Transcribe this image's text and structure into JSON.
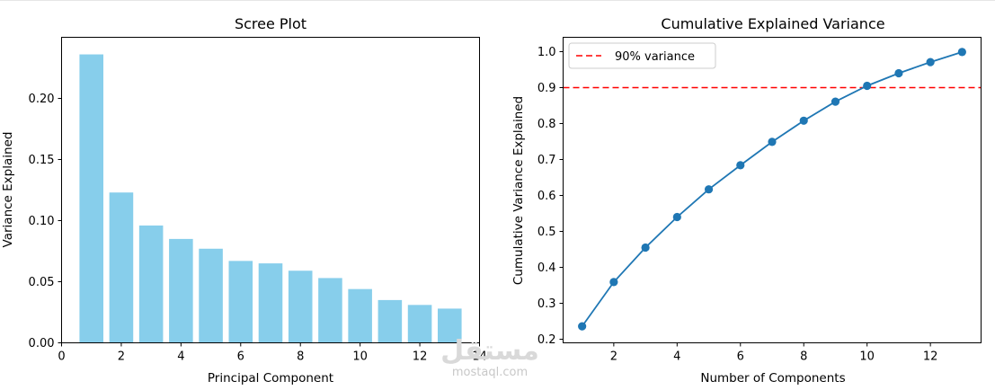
{
  "chart_data": [
    {
      "type": "bar",
      "title": "Scree Plot",
      "xlabel": "Principal Component",
      "ylabel": "Variance Explained",
      "xlim": [
        0,
        14
      ],
      "ylim": [
        0,
        0.25
      ],
      "x_ticks": [
        0,
        2,
        4,
        6,
        8,
        10,
        12,
        14
      ],
      "y_ticks": [
        0.0,
        0.05,
        0.1,
        0.15,
        0.2
      ],
      "y_tick_labels": [
        "0.00",
        "0.05",
        "0.10",
        "0.15",
        "0.20"
      ],
      "categories": [
        1,
        2,
        3,
        4,
        5,
        6,
        7,
        8,
        9,
        10,
        11,
        12,
        13
      ],
      "values": [
        0.236,
        0.123,
        0.096,
        0.085,
        0.077,
        0.067,
        0.065,
        0.059,
        0.053,
        0.044,
        0.035,
        0.031,
        0.028
      ],
      "color": "#87ceeb",
      "grid": false
    },
    {
      "type": "line",
      "title": "Cumulative Explained Variance",
      "xlabel": "Number of Components",
      "ylabel": "Cumulative Variance Explained",
      "xlim": [
        0.4,
        13.6
      ],
      "ylim": [
        0.19,
        1.04
      ],
      "x_ticks": [
        2,
        4,
        6,
        8,
        10,
        12
      ],
      "y_ticks": [
        0.2,
        0.3,
        0.4,
        0.5,
        0.6,
        0.7,
        0.8,
        0.9,
        1.0
      ],
      "y_tick_labels": [
        "0.2",
        "0.3",
        "0.4",
        "0.5",
        "0.6",
        "0.7",
        "0.8",
        "0.9",
        "1.0"
      ],
      "x": [
        1,
        2,
        3,
        4,
        5,
        6,
        7,
        8,
        9,
        10,
        11,
        12,
        13
      ],
      "series": [
        {
          "values": [
            0.236,
            0.359,
            0.455,
            0.54,
            0.617,
            0.684,
            0.749,
            0.808,
            0.861,
            0.905,
            0.94,
            0.971,
            0.999
          ],
          "color": "#1f77b4",
          "marker": "circle"
        }
      ],
      "reference_line": {
        "y": 0.9,
        "label": "90% variance",
        "color": "#ff0000",
        "style": "dashed"
      },
      "legend_position": "top-left",
      "grid": false
    }
  ],
  "watermark": {
    "arabic": "مستقل",
    "latin": "mostaql.com"
  }
}
